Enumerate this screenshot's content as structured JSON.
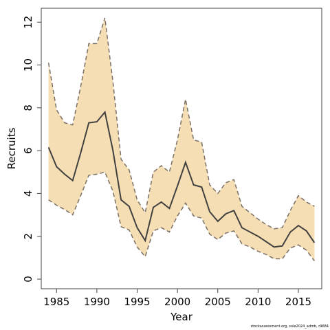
{
  "chart_data": {
    "type": "line",
    "xlabel": "Year",
    "ylabel": "Recruits",
    "xlim": [
      1983.1,
      2017.9
    ],
    "ylim": [
      -0.45,
      12.65
    ],
    "x_ticks": [
      1985,
      1990,
      1995,
      2000,
      2005,
      2010,
      2015
    ],
    "y_ticks": [
      0,
      2,
      4,
      6,
      8,
      10,
      12
    ],
    "grid": false,
    "legend": "none",
    "colors": {
      "band": "#f5deb3",
      "median": "#404040",
      "bounds": "#7a6f65"
    },
    "x": [
      1984,
      1985,
      1986,
      1987,
      1988,
      1989,
      1990,
      1991,
      1992,
      1993,
      1994,
      1995,
      1996,
      1997,
      1998,
      1999,
      2000,
      2001,
      2002,
      2003,
      2004,
      2005,
      2006,
      2007,
      2008,
      2009,
      2010,
      2011,
      2012,
      2013,
      2014,
      2015,
      2016,
      2017
    ],
    "series": [
      {
        "role": "median",
        "values": [
          6.15,
          5.25,
          4.9,
          4.6,
          5.9,
          7.3,
          7.35,
          7.8,
          6.0,
          3.7,
          3.4,
          2.4,
          1.8,
          3.35,
          3.6,
          3.3,
          4.35,
          5.45,
          4.4,
          4.3,
          3.15,
          2.7,
          3.05,
          3.2,
          2.4,
          2.2,
          2.0,
          1.75,
          1.5,
          1.55,
          2.2,
          2.5,
          2.25,
          1.7
        ]
      },
      {
        "role": "upper",
        "values": [
          10.1,
          7.9,
          7.3,
          7.2,
          9.0,
          11.0,
          11.0,
          12.2,
          9.2,
          5.6,
          5.1,
          3.7,
          3.1,
          5.0,
          5.3,
          5.0,
          6.5,
          8.4,
          6.5,
          6.4,
          4.4,
          4.0,
          4.5,
          4.65,
          3.4,
          3.1,
          2.8,
          2.55,
          2.35,
          2.4,
          3.2,
          3.9,
          3.6,
          3.4
        ]
      },
      {
        "role": "lower",
        "values": [
          3.7,
          3.45,
          3.25,
          3.0,
          3.9,
          4.85,
          4.9,
          5.0,
          4.1,
          2.45,
          2.3,
          1.5,
          1.05,
          2.25,
          2.4,
          2.2,
          2.95,
          3.55,
          2.95,
          2.85,
          2.1,
          1.85,
          2.15,
          2.25,
          1.65,
          1.5,
          1.3,
          1.15,
          0.95,
          0.95,
          1.45,
          1.6,
          1.35,
          0.85
        ]
      }
    ]
  },
  "footnote": "stockassessment.org, sole2024_admb, r9684"
}
